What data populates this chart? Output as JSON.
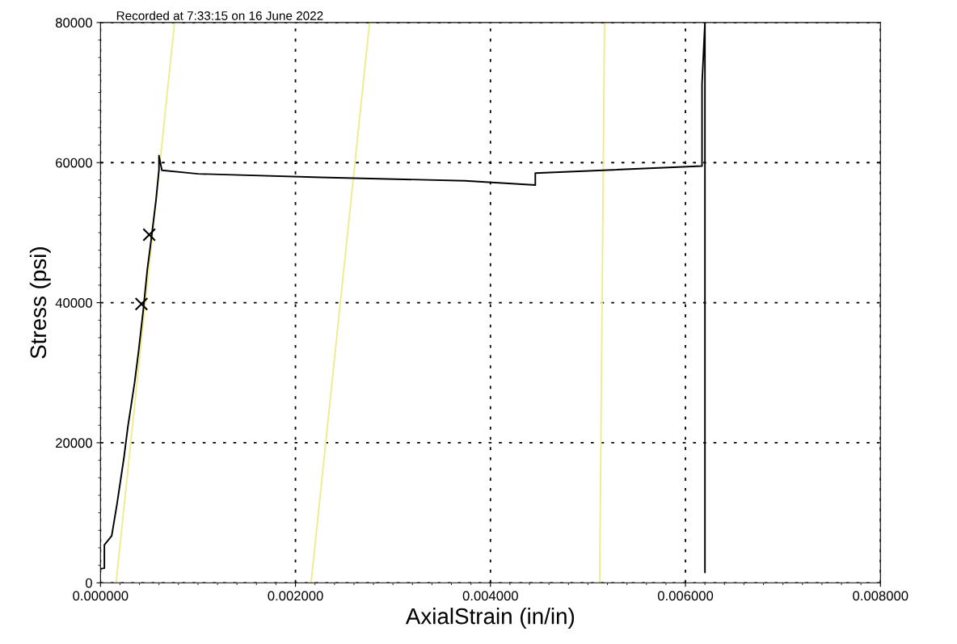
{
  "chart_data": {
    "type": "line",
    "title": "Recorded at 7:33:15 on 16 June 2022",
    "xlabel": "AxialStrain (in/in)",
    "ylabel": "Stress (psi)",
    "xlim": [
      0,
      0.008
    ],
    "xticks": [
      {
        "value": 0,
        "label": "0.000000"
      },
      {
        "value": 0.002,
        "label": "0.002000"
      },
      {
        "value": 0.004,
        "label": "0.004000"
      },
      {
        "value": 0.006,
        "label": "0.006000"
      },
      {
        "value": 0.008,
        "label": "0.008000"
      }
    ],
    "ylim": [
      0,
      80000
    ],
    "yticks": [
      0,
      20000,
      40000,
      60000,
      80000
    ],
    "grid": true,
    "series": [
      {
        "type": "line",
        "color": "#f0ec8c",
        "x": [
          0.00016,
          0.00076
        ],
        "values": [
          0,
          80000
        ]
      },
      {
        "type": "line",
        "color": "#f0ec8c",
        "x": [
          0.00216,
          0.00276
        ],
        "values": [
          0,
          80000
        ]
      },
      {
        "type": "line",
        "color": "#f0ec8c",
        "x": [
          0.00512,
          0.00517
        ],
        "values": [
          0,
          80000
        ]
      },
      {
        "color": "#000000",
        "x": [
          0,
          4e-05,
          4e-05,
          0.000115,
          0.00017,
          0.00024,
          0.00028,
          0.00035,
          0.00039,
          0.00044,
          0.00048,
          0.00052,
          0.00057,
          0.0006,
          0.0006,
          0.00063,
          0.001,
          0.00226,
          0.00374,
          0.00446,
          0.00446,
          0.00617,
          0.00617,
          0.0062,
          0.0062
        ],
        "values": [
          2000,
          2100,
          5400,
          6700,
          11300,
          17800,
          22200,
          28600,
          33000,
          39100,
          44700,
          49000,
          54700,
          59000,
          61000,
          58900,
          58400,
          57900,
          57400,
          56800,
          58500,
          59500,
          71200,
          80000,
          1500
        ]
      },
      {
        "type": "scatter",
        "color": "#000000",
        "marker": "cross",
        "x": [
          0.00042,
          0.0005
        ],
        "values": [
          39800,
          49700
        ]
      }
    ]
  }
}
